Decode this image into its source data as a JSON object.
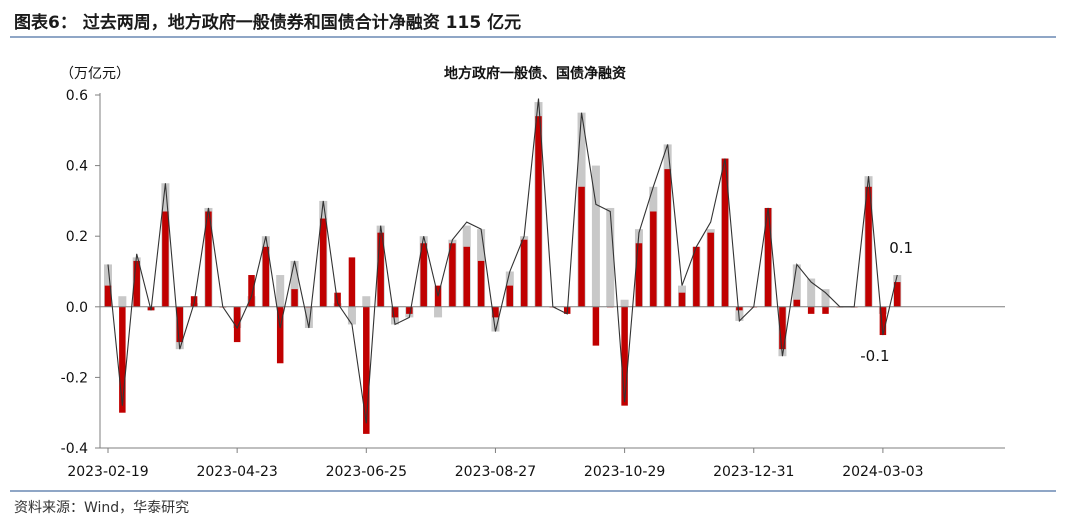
{
  "figure": {
    "title": "图表6：  过去两周，地方政府一般债券和国债合计净融资 115 亿元",
    "source": "资料来源：Wind，华泰研究"
  },
  "chart_data": {
    "type": "bar",
    "title": "地方政府一般债、国债净融资",
    "ylabel": "（万亿元）",
    "ylim": [
      -0.4,
      0.6
    ],
    "yticks": [
      "0.6",
      "0.4",
      "0.2",
      "0.0",
      "-0.2",
      "-0.4"
    ],
    "ytick_values": [
      0.6,
      0.4,
      0.2,
      0.0,
      -0.2,
      -0.4
    ],
    "xtick_labels": [
      "2023-02-19",
      "2023-04-23",
      "2023-06-25",
      "2023-08-27",
      "2023-10-29",
      "2023-12-31",
      "2024-03-03"
    ],
    "xtick_indices": [
      0,
      9,
      18,
      27,
      36,
      45,
      54
    ],
    "annotations": [
      {
        "text": "0.1",
        "index": 55,
        "value": 0.1
      },
      {
        "text": "-0.1",
        "index": 54,
        "value": -0.1
      }
    ],
    "colors": {
      "red": "#c00000",
      "gray": "#c8c8c8",
      "line": "#333333",
      "axis": "#7f7f7f"
    },
    "series": [
      {
        "values": [
          0.06,
          -0.3,
          0.13,
          -0.01,
          0.27,
          -0.1,
          0.03,
          0.27,
          0.0,
          -0.1,
          0.09,
          0.17,
          -0.16,
          0.05,
          0.0,
          0.25,
          0.04,
          0.14,
          -0.36,
          0.21,
          -0.03,
          -0.02,
          0.18,
          0.06,
          0.18,
          0.17,
          0.13,
          -0.03,
          0.06,
          0.19,
          0.54,
          0.0,
          -0.02,
          0.34,
          -0.11,
          0.0,
          -0.28,
          0.18,
          0.27,
          0.39,
          0.04,
          0.17,
          0.21,
          0.42,
          -0.01,
          0.0,
          0.28,
          -0.12,
          0.02,
          -0.02,
          -0.02,
          0.0,
          0.0,
          0.34,
          -0.08,
          0.07
        ]
      },
      {
        "values": [
          0.12,
          0.03,
          0.14,
          -0.01,
          0.35,
          -0.12,
          0.01,
          0.28,
          0.0,
          -0.06,
          0.03,
          0.2,
          0.09,
          0.13,
          -0.06,
          0.3,
          0.01,
          -0.05,
          0.03,
          0.23,
          -0.05,
          -0.03,
          0.2,
          -0.03,
          0.19,
          0.23,
          0.22,
          -0.07,
          0.1,
          0.2,
          0.58,
          0.0,
          0.0,
          0.55,
          0.4,
          0.28,
          0.02,
          0.22,
          0.34,
          0.46,
          0.06,
          0.17,
          0.22,
          0.42,
          -0.04,
          0.0,
          0.28,
          -0.14,
          0.12,
          0.08,
          0.05,
          0.0,
          0.0,
          0.37,
          -0.02,
          0.09
        ]
      },
      {
        "values": [
          0.12,
          -0.28,
          0.15,
          -0.01,
          0.35,
          -0.12,
          0.01,
          0.28,
          0.0,
          -0.06,
          0.03,
          0.2,
          -0.06,
          0.13,
          -0.06,
          0.3,
          0.01,
          -0.05,
          -0.33,
          0.23,
          -0.05,
          -0.03,
          0.2,
          0.03,
          0.19,
          0.24,
          0.22,
          -0.07,
          0.1,
          0.2,
          0.59,
          0.0,
          -0.02,
          0.55,
          0.29,
          0.27,
          -0.27,
          0.21,
          0.34,
          0.46,
          0.06,
          0.17,
          0.24,
          0.42,
          -0.04,
          0.0,
          0.28,
          -0.14,
          0.12,
          0.07,
          0.04,
          0.0,
          0.0,
          0.37,
          -0.08,
          0.09
        ]
      }
    ]
  }
}
